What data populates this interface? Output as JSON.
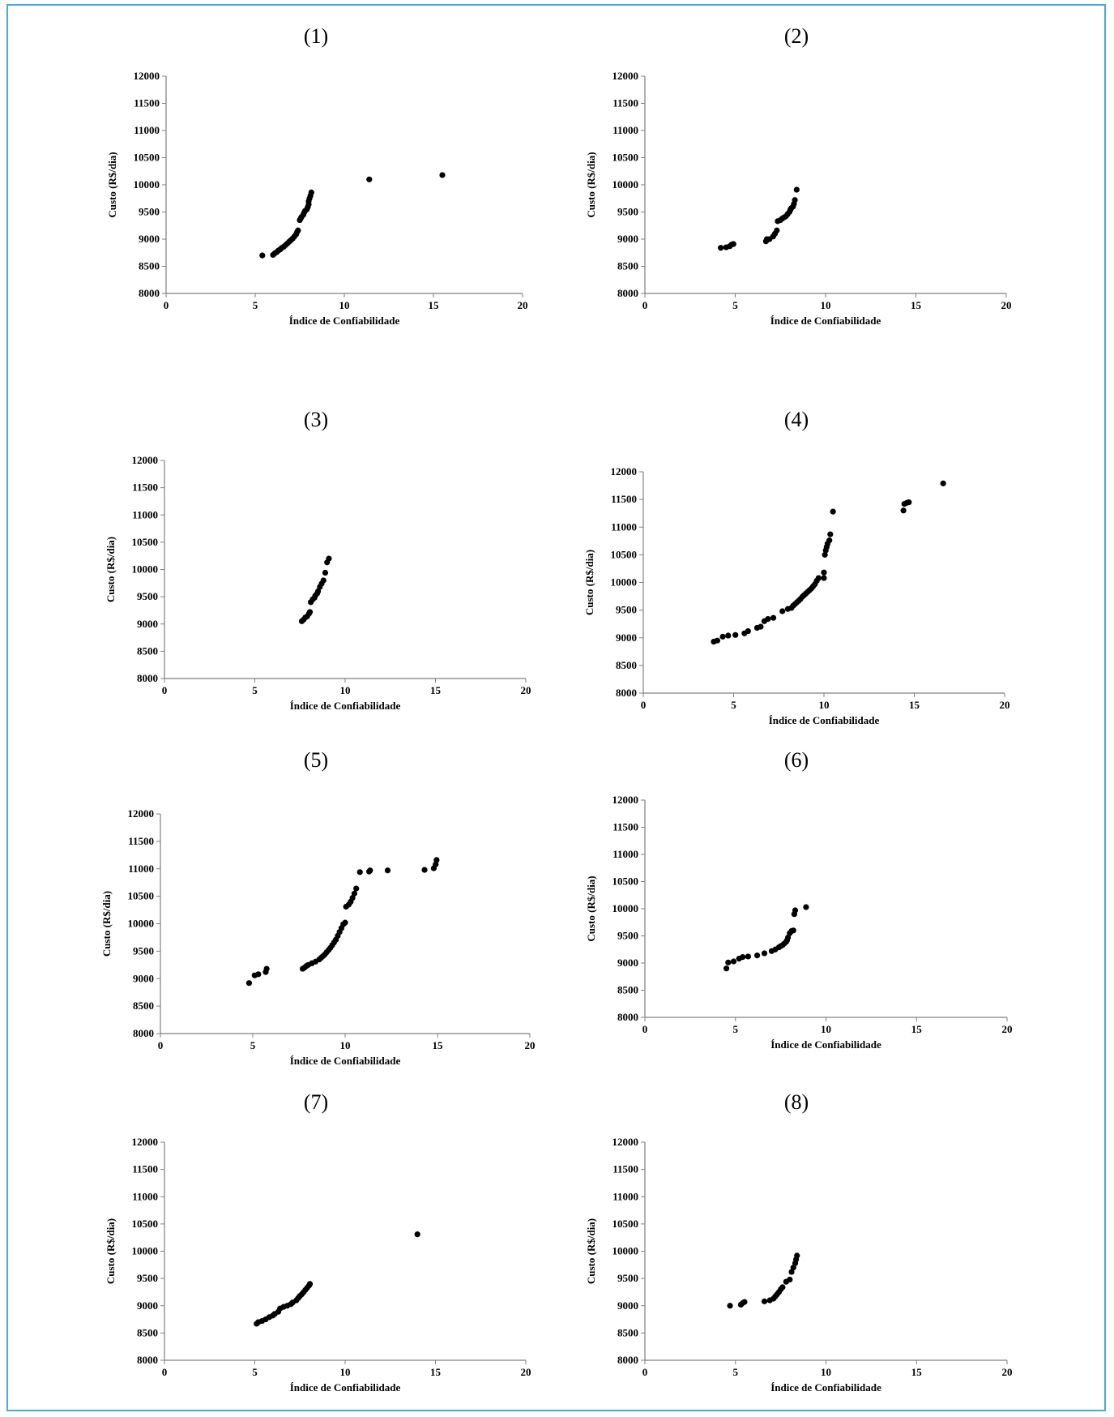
{
  "chart_data": [
    {
      "type": "scatter",
      "title": "(1)",
      "xlabel": "Índice de Confiabilidade",
      "ylabel": "Custo (R$/dia)",
      "xlim": [
        0,
        20
      ],
      "ylim": [
        8000,
        12000
      ],
      "xticks": [
        "0",
        "5",
        "10",
        "15",
        "20"
      ],
      "yticks": [
        "8000",
        "8500",
        "9000",
        "9500",
        "10000",
        "10500",
        "11000",
        "11500",
        "12000"
      ],
      "points": [
        [
          5.4,
          8700
        ],
        [
          6.0,
          8710
        ],
        [
          6.1,
          8740
        ],
        [
          6.2,
          8760
        ],
        [
          6.3,
          8790
        ],
        [
          6.4,
          8810
        ],
        [
          6.5,
          8840
        ],
        [
          6.6,
          8860
        ],
        [
          6.7,
          8890
        ],
        [
          6.8,
          8920
        ],
        [
          6.9,
          8950
        ],
        [
          7.0,
          8980
        ],
        [
          7.1,
          9010
        ],
        [
          7.2,
          9050
        ],
        [
          7.3,
          9090
        ],
        [
          7.35,
          9130
        ],
        [
          7.4,
          9160
        ],
        [
          7.5,
          9350
        ],
        [
          7.55,
          9380
        ],
        [
          7.6,
          9410
        ],
        [
          7.7,
          9450
        ],
        [
          7.75,
          9490
        ],
        [
          7.8,
          9520
        ],
        [
          7.9,
          9550
        ],
        [
          7.95,
          9590
        ],
        [
          8.0,
          9640
        ],
        [
          8.0,
          9700
        ],
        [
          8.05,
          9750
        ],
        [
          8.1,
          9800
        ],
        [
          8.15,
          9860
        ],
        [
          11.4,
          10100
        ],
        [
          15.5,
          10180
        ]
      ]
    },
    {
      "type": "scatter",
      "title": "(2)",
      "xlabel": "Índice de Confiabilidade",
      "ylabel": "Custo (R$/dia)",
      "xlim": [
        0,
        20
      ],
      "ylim": [
        8000,
        12000
      ],
      "xticks": [
        "0",
        "5",
        "10",
        "15",
        "20"
      ],
      "yticks": [
        "8000",
        "8500",
        "9000",
        "9500",
        "10000",
        "10500",
        "11000",
        "11500",
        "12000"
      ],
      "points": [
        [
          4.2,
          8840
        ],
        [
          4.5,
          8850
        ],
        [
          4.7,
          8870
        ],
        [
          4.8,
          8900
        ],
        [
          4.9,
          8910
        ],
        [
          6.7,
          8960
        ],
        [
          6.75,
          9000
        ],
        [
          6.9,
          9000
        ],
        [
          7.1,
          9050
        ],
        [
          7.2,
          9100
        ],
        [
          7.3,
          9160
        ],
        [
          7.35,
          9330
        ],
        [
          7.5,
          9350
        ],
        [
          7.6,
          9380
        ],
        [
          7.7,
          9400
        ],
        [
          7.8,
          9420
        ],
        [
          7.9,
          9460
        ],
        [
          8.0,
          9500
        ],
        [
          8.05,
          9540
        ],
        [
          8.1,
          9570
        ],
        [
          8.2,
          9600
        ],
        [
          8.25,
          9650
        ],
        [
          8.3,
          9720
        ],
        [
          8.4,
          9910
        ]
      ]
    },
    {
      "type": "scatter",
      "title": "(3)",
      "xlabel": "Índice de Confiabilidade",
      "ylabel": "Custo (R$/dia)",
      "xlim": [
        0,
        20
      ],
      "ylim": [
        8000,
        12000
      ],
      "xticks": [
        "0",
        "5",
        "10",
        "15",
        "20"
      ],
      "yticks": [
        "8000",
        "8500",
        "9000",
        "9500",
        "10000",
        "10500",
        "11000",
        "11500",
        "12000"
      ],
      "points": [
        [
          7.6,
          9050
        ],
        [
          7.7,
          9080
        ],
        [
          7.8,
          9120
        ],
        [
          7.9,
          9140
        ],
        [
          8.0,
          9190
        ],
        [
          8.05,
          9220
        ],
        [
          8.1,
          9400
        ],
        [
          8.2,
          9450
        ],
        [
          8.3,
          9480
        ],
        [
          8.35,
          9520
        ],
        [
          8.45,
          9560
        ],
        [
          8.5,
          9600
        ],
        [
          8.6,
          9680
        ],
        [
          8.7,
          9740
        ],
        [
          8.8,
          9800
        ],
        [
          8.9,
          9940
        ],
        [
          9.0,
          10130
        ],
        [
          9.1,
          10200
        ]
      ]
    },
    {
      "type": "scatter",
      "title": "(4)",
      "xlabel": "Índice de Confiabilidade",
      "ylabel": "Custo (R$/dia)",
      "xlim": [
        0,
        20
      ],
      "ylim": [
        8000,
        12000
      ],
      "xticks": [
        "0",
        "5",
        "10",
        "15",
        "20"
      ],
      "yticks": [
        "8000",
        "8500",
        "9000",
        "9500",
        "10000",
        "10500",
        "11000",
        "11500",
        "12000"
      ],
      "points": [
        [
          3.9,
          8930
        ],
        [
          4.1,
          8950
        ],
        [
          4.4,
          9020
        ],
        [
          4.7,
          9040
        ],
        [
          5.1,
          9050
        ],
        [
          5.6,
          9080
        ],
        [
          5.8,
          9120
        ],
        [
          6.3,
          9180
        ],
        [
          6.5,
          9200
        ],
        [
          6.7,
          9300
        ],
        [
          6.9,
          9340
        ],
        [
          7.2,
          9360
        ],
        [
          7.7,
          9480
        ],
        [
          8.0,
          9520
        ],
        [
          8.2,
          9540
        ],
        [
          8.3,
          9580
        ],
        [
          8.4,
          9610
        ],
        [
          8.5,
          9640
        ],
        [
          8.6,
          9670
        ],
        [
          8.7,
          9700
        ],
        [
          8.8,
          9740
        ],
        [
          8.9,
          9770
        ],
        [
          9.0,
          9800
        ],
        [
          9.1,
          9830
        ],
        [
          9.2,
          9860
        ],
        [
          9.3,
          9890
        ],
        [
          9.4,
          9930
        ],
        [
          9.5,
          9970
        ],
        [
          9.6,
          10030
        ],
        [
          9.7,
          10080
        ],
        [
          10.0,
          10080
        ],
        [
          10.0,
          10180
        ],
        [
          10.05,
          10500
        ],
        [
          10.1,
          10580
        ],
        [
          10.15,
          10640
        ],
        [
          10.2,
          10700
        ],
        [
          10.3,
          10760
        ],
        [
          10.35,
          10870
        ],
        [
          10.5,
          11280
        ],
        [
          14.4,
          11300
        ],
        [
          14.45,
          11420
        ],
        [
          14.6,
          11440
        ],
        [
          14.7,
          11450
        ],
        [
          16.6,
          11790
        ]
      ]
    },
    {
      "type": "scatter",
      "title": "(5)",
      "xlabel": "Índice de Confiabilidade",
      "ylabel": "Custo (R$/dia)",
      "xlim": [
        0,
        20
      ],
      "ylim": [
        8000,
        12000
      ],
      "xticks": [
        "0",
        "5",
        "10",
        "15",
        "20"
      ],
      "yticks": [
        "8000",
        "8500",
        "9000",
        "9500",
        "10000",
        "10500",
        "11000",
        "11500",
        "12000"
      ],
      "points": [
        [
          4.8,
          8920
        ],
        [
          5.1,
          9060
        ],
        [
          5.3,
          9080
        ],
        [
          5.7,
          9120
        ],
        [
          5.75,
          9180
        ],
        [
          7.7,
          9180
        ],
        [
          7.8,
          9200
        ],
        [
          7.9,
          9230
        ],
        [
          8.0,
          9250
        ],
        [
          8.2,
          9280
        ],
        [
          8.4,
          9310
        ],
        [
          8.6,
          9350
        ],
        [
          8.7,
          9380
        ],
        [
          8.8,
          9410
        ],
        [
          8.9,
          9440
        ],
        [
          9.0,
          9480
        ],
        [
          9.1,
          9520
        ],
        [
          9.2,
          9560
        ],
        [
          9.3,
          9610
        ],
        [
          9.4,
          9660
        ],
        [
          9.5,
          9710
        ],
        [
          9.6,
          9780
        ],
        [
          9.7,
          9850
        ],
        [
          9.8,
          9920
        ],
        [
          9.9,
          9990
        ],
        [
          10.0,
          10020
        ],
        [
          10.05,
          10310
        ],
        [
          10.2,
          10350
        ],
        [
          10.3,
          10400
        ],
        [
          10.4,
          10470
        ],
        [
          10.5,
          10550
        ],
        [
          10.6,
          10640
        ],
        [
          10.8,
          10940
        ],
        [
          11.3,
          10950
        ],
        [
          11.35,
          10970
        ],
        [
          12.3,
          10970
        ],
        [
          14.3,
          10980
        ],
        [
          14.8,
          11010
        ],
        [
          14.9,
          11080
        ],
        [
          14.95,
          11160
        ]
      ]
    },
    {
      "type": "scatter",
      "title": "(6)",
      "xlabel": "Índice de Confiabilidade",
      "ylabel": "Custo (R$/dia)",
      "xlim": [
        0,
        20
      ],
      "ylim": [
        8000,
        12000
      ],
      "xticks": [
        "0",
        "5",
        "10",
        "15",
        "20"
      ],
      "yticks": [
        "8000",
        "8500",
        "9000",
        "9500",
        "10000",
        "10500",
        "11000",
        "11500",
        "12000"
      ],
      "points": [
        [
          4.5,
          8900
        ],
        [
          4.6,
          9010
        ],
        [
          4.9,
          9030
        ],
        [
          5.2,
          9080
        ],
        [
          5.4,
          9110
        ],
        [
          5.7,
          9120
        ],
        [
          6.2,
          9140
        ],
        [
          6.6,
          9180
        ],
        [
          7.0,
          9220
        ],
        [
          7.2,
          9250
        ],
        [
          7.4,
          9290
        ],
        [
          7.5,
          9310
        ],
        [
          7.6,
          9330
        ],
        [
          7.7,
          9360
        ],
        [
          7.8,
          9390
        ],
        [
          7.85,
          9420
        ],
        [
          7.9,
          9470
        ],
        [
          8.0,
          9550
        ],
        [
          8.1,
          9590
        ],
        [
          8.2,
          9600
        ],
        [
          8.25,
          9900
        ],
        [
          8.3,
          9970
        ],
        [
          8.9,
          10030
        ]
      ]
    },
    {
      "type": "scatter",
      "title": "(7)",
      "xlabel": "Índice de Confiabilidade",
      "ylabel": "Custo (R$/dia)",
      "xlim": [
        0,
        20
      ],
      "ylim": [
        8000,
        12000
      ],
      "xticks": [
        "0",
        "5",
        "10",
        "15",
        "20"
      ],
      "yticks": [
        "8000",
        "8500",
        "9000",
        "9500",
        "10000",
        "10500",
        "11000",
        "11500",
        "12000"
      ],
      "points": [
        [
          5.1,
          8670
        ],
        [
          5.2,
          8700
        ],
        [
          5.4,
          8720
        ],
        [
          5.6,
          8750
        ],
        [
          5.8,
          8790
        ],
        [
          6.0,
          8820
        ],
        [
          6.1,
          8850
        ],
        [
          6.3,
          8890
        ],
        [
          6.4,
          8950
        ],
        [
          6.6,
          8980
        ],
        [
          6.8,
          9000
        ],
        [
          7.0,
          9030
        ],
        [
          7.1,
          9060
        ],
        [
          7.3,
          9100
        ],
        [
          7.4,
          9140
        ],
        [
          7.5,
          9180
        ],
        [
          7.6,
          9210
        ],
        [
          7.7,
          9250
        ],
        [
          7.8,
          9290
        ],
        [
          7.9,
          9330
        ],
        [
          8.0,
          9370
        ],
        [
          8.05,
          9400
        ],
        [
          14.0,
          10310
        ]
      ]
    },
    {
      "type": "scatter",
      "title": "(8)",
      "xlabel": "Índice de Confiabilidade",
      "ylabel": "Custo (R$/dia)",
      "xlim": [
        0,
        20
      ],
      "ylim": [
        8000,
        12000
      ],
      "xticks": [
        "0",
        "5",
        "10",
        "15",
        "20"
      ],
      "yticks": [
        "8000",
        "8500",
        "9000",
        "9500",
        "10000",
        "10500",
        "11000",
        "11500",
        "12000"
      ],
      "points": [
        [
          4.7,
          9000
        ],
        [
          5.3,
          9020
        ],
        [
          5.4,
          9050
        ],
        [
          5.5,
          9070
        ],
        [
          6.6,
          9080
        ],
        [
          6.9,
          9100
        ],
        [
          7.1,
          9130
        ],
        [
          7.2,
          9170
        ],
        [
          7.3,
          9210
        ],
        [
          7.4,
          9250
        ],
        [
          7.5,
          9300
        ],
        [
          7.6,
          9340
        ],
        [
          7.8,
          9440
        ],
        [
          8.0,
          9480
        ],
        [
          8.1,
          9620
        ],
        [
          8.2,
          9700
        ],
        [
          8.3,
          9780
        ],
        [
          8.35,
          9850
        ],
        [
          8.4,
          9920
        ]
      ]
    }
  ]
}
